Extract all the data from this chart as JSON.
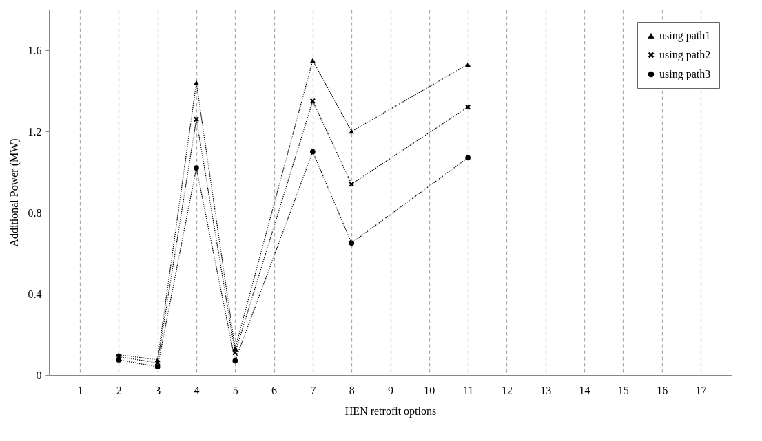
{
  "chart_data": {
    "type": "line",
    "xlabel": "HEN retrofit options",
    "ylabel": "Additional Power (MW)",
    "x": [
      2,
      3,
      4,
      5,
      7,
      8,
      11
    ],
    "series": [
      {
        "name": "using path1",
        "color": "#000000",
        "marker": "triangle",
        "values": [
          0.1,
          0.075,
          1.44,
          0.13,
          1.55,
          1.2,
          1.53
        ]
      },
      {
        "name": "using path2",
        "color": "#000000",
        "marker": "cross",
        "values": [
          0.09,
          0.06,
          1.26,
          0.11,
          1.35,
          0.94,
          1.32
        ]
      },
      {
        "name": "using path3",
        "color": "#000000",
        "marker": "circle",
        "values": [
          0.075,
          0.04,
          1.02,
          0.07,
          1.1,
          0.65,
          1.07
        ]
      }
    ],
    "xlim": [
      0.2,
      17.8
    ],
    "xticks": [
      1,
      2,
      3,
      4,
      5,
      6,
      7,
      8,
      9,
      10,
      11,
      12,
      13,
      14,
      15,
      16,
      17
    ],
    "ylim": [
      0,
      1.8
    ],
    "yticks": [
      0,
      0.4,
      0.8,
      1.2,
      1.6
    ],
    "grid": "x",
    "legend": "top right",
    "line_style": "dotted"
  }
}
